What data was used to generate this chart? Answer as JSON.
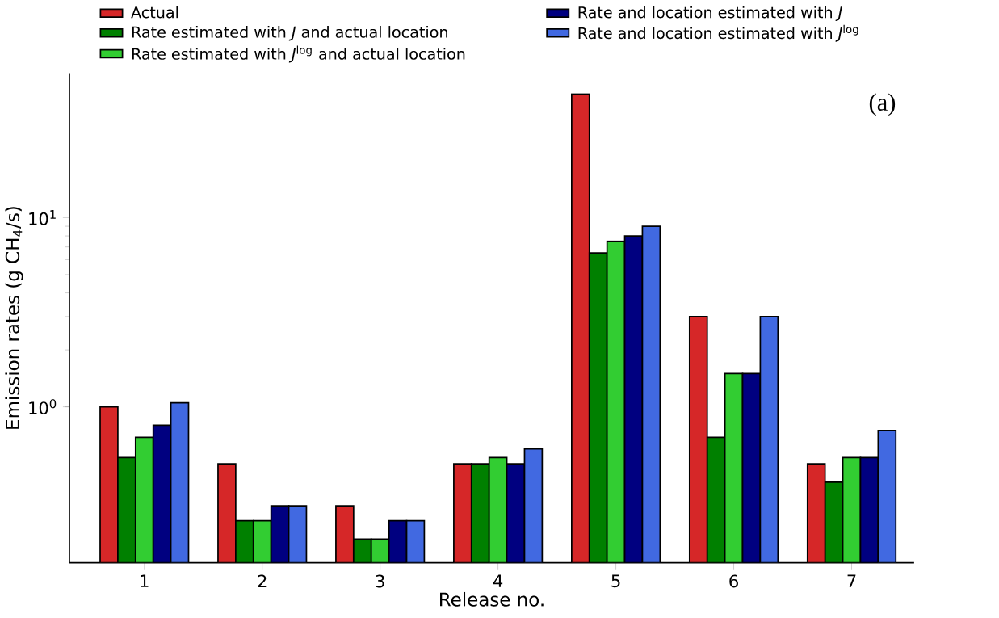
{
  "chart_data": {
    "type": "bar",
    "xlabel": "Release no.",
    "ylabel": "Emission rates (g CH$_{4}$/s)",
    "categories": [
      "1",
      "2",
      "3",
      "4",
      "5",
      "6",
      "7"
    ],
    "series": [
      {
        "name": "Actual",
        "color": "#d62728",
        "values": [
          1.0,
          0.5,
          0.3,
          0.5,
          45,
          3.0,
          0.5
        ]
      },
      {
        "name": "Rate estimated with *J* and actual location",
        "color": "#008000",
        "values": [
          0.54,
          0.25,
          0.2,
          0.5,
          6.5,
          0.69,
          0.4
        ]
      },
      {
        "name": "Rate estimated with *J*$^{log}$ and actual location",
        "color": "#32cd32",
        "values": [
          0.69,
          0.25,
          0.2,
          0.54,
          7.5,
          1.5,
          0.54
        ]
      },
      {
        "name": "Rate and location estimated with *J*",
        "color": "#000080",
        "values": [
          0.8,
          0.3,
          0.25,
          0.5,
          8.0,
          1.5,
          0.54
        ]
      },
      {
        "name": "Rate and location estimated with *J*$^{log}$",
        "color": "#4169e1",
        "values": [
          1.05,
          0.3,
          0.25,
          0.6,
          9.0,
          3.0,
          0.75
        ]
      }
    ],
    "log": true,
    "ylim": [
      0.15,
      58
    ],
    "yticks": [
      {
        "value": 1,
        "label": "10$^{0}$"
      },
      {
        "value": 10,
        "label": "10$^{1}$"
      }
    ],
    "legend": "top",
    "annotations": [
      "(a)"
    ]
  }
}
